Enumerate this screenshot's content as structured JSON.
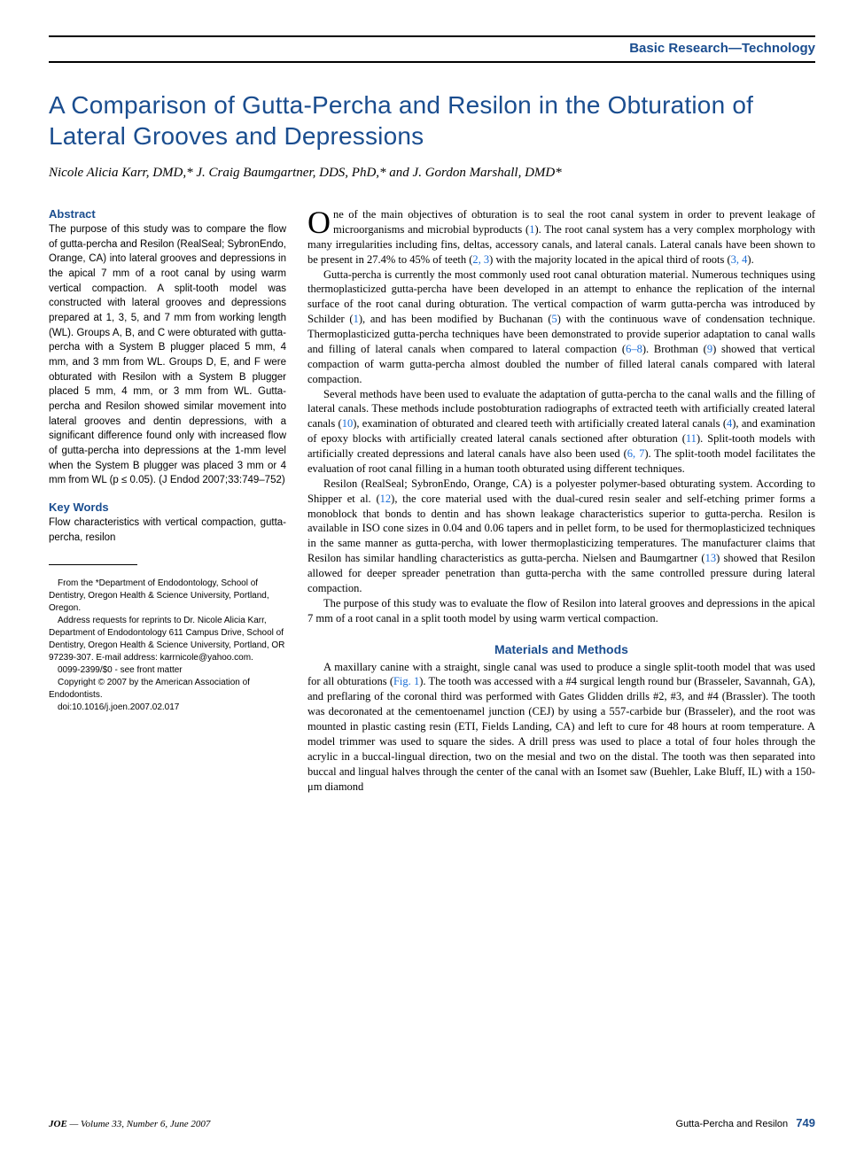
{
  "header": {
    "section": "Basic Research—Technology"
  },
  "title": "A Comparison of Gutta-Percha and Resilon in the Obturation of Lateral Grooves and Depressions",
  "authors": "Nicole Alicia Karr, DMD,* J. Craig Baumgartner, DDS, PhD,* and J. Gordon Marshall, DMD*",
  "abstract": {
    "heading": "Abstract",
    "text": "The purpose of this study was to compare the flow of gutta-percha and Resilon (RealSeal; SybronEndo, Orange, CA) into lateral grooves and depressions in the apical 7 mm of a root canal by using warm vertical compaction. A split-tooth model was constructed with lateral grooves and depressions prepared at 1, 3, 5, and 7 mm from working length (WL). Groups A, B, and C were obturated with gutta-percha with a System B plugger placed 5 mm, 4 mm, and 3 mm from WL. Groups D, E, and F were obturated with Resilon with a System B plugger placed 5 mm, 4 mm, or 3 mm from WL. Gutta-percha and Resilon showed similar movement into lateral grooves and dentin depressions, with a significant difference found only with increased flow of gutta-percha into depressions at the 1-mm level when the System B plugger was placed 3 mm or 4 mm from WL (p ≤ 0.05). (J Endod 2007;33:749–752)"
  },
  "keywords": {
    "heading": "Key Words",
    "text": "Flow characteristics with vertical compaction, gutta-percha, resilon"
  },
  "footnote": {
    "affiliation": "From the *Department of Endodontology, School of Dentistry, Oregon Health & Science University, Portland, Oregon.",
    "correspondence": "Address requests for reprints to Dr. Nicole Alicia Karr, Department of Endodontology 611 Campus Drive, School of Dentistry, Oregon Health & Science University, Portland, OR 97239-307. E-mail address: karrnicole@yahoo.com.",
    "issn": "0099-2399/$0 - see front matter",
    "copyright": "Copyright © 2007 by the American Association of Endodontists.",
    "doi": "doi:10.1016/j.joen.2007.02.017"
  },
  "body": {
    "p1_dropcap": "O",
    "p1": "ne of the main objectives of obturation is to seal the root canal system in order to prevent leakage of microorganisms and microbial byproducts (1). The root canal system has a very complex morphology with many irregularities including fins, deltas, accessory canals, and lateral canals. Lateral canals have been shown to be present in 27.4% to 45% of teeth (2, 3) with the majority located in the apical third of roots (3, 4).",
    "p2": "Gutta-percha is currently the most commonly used root canal obturation material. Numerous techniques using thermoplasticized gutta-percha have been developed in an attempt to enhance the replication of the internal surface of the root canal during obturation. The vertical compaction of warm gutta-percha was introduced by Schilder (1), and has been modified by Buchanan (5) with the continuous wave of condensation technique. Thermoplasticized gutta-percha techniques have been demonstrated to provide superior adaptation to canal walls and filling of lateral canals when compared to lateral compaction (6–8). Brothman (9) showed that vertical compaction of warm gutta-percha almost doubled the number of filled lateral canals compared with lateral compaction.",
    "p3": "Several methods have been used to evaluate the adaptation of gutta-percha to the canal walls and the filling of lateral canals. These methods include postobturation radiographs of extracted teeth with artificially created lateral canals (10), examination of obturated and cleared teeth with artificially created lateral canals (4), and examination of epoxy blocks with artificially created lateral canals sectioned after obturation (11). Split-tooth models with artificially created depressions and lateral canals have also been used (6, 7). The split-tooth model facilitates the evaluation of root canal filling in a human tooth obturated using different techniques.",
    "p4": "Resilon (RealSeal; SybronEndo, Orange, CA) is a polyester polymer-based obturating system. According to Shipper et al. (12), the core material used with the dual-cured resin sealer and self-etching primer forms a monoblock that bonds to dentin and has shown leakage characteristics superior to gutta-percha. Resilon is available in ISO cone sizes in 0.04 and 0.06 tapers and in pellet form, to be used for thermoplasticized techniques in the same manner as gutta-percha, with lower thermoplasticizing temperatures. The manufacturer claims that Resilon has similar handling characteristics as gutta-percha. Nielsen and Baumgartner (13) showed that Resilon allowed for deeper spreader penetration than gutta-percha with the same controlled pressure during lateral compaction.",
    "p5": "The purpose of this study was to evaluate the flow of Resilon into lateral grooves and depressions in the apical 7 mm of a root canal in a split tooth model by using warm vertical compaction.",
    "methods_heading": "Materials and Methods",
    "p6": "A maxillary canine with a straight, single canal was used to produce a single split-tooth model that was used for all obturations (Fig. 1). The tooth was accessed with a #4 surgical length round bur (Brasseler, Savannah, GA), and preflaring of the coronal third was performed with Gates Glidden drills #2, #3, and #4 (Brassler). The tooth was decoronated at the cementoenamel junction (CEJ) by using a 557-carbide bur (Brasseler), and the root was mounted in plastic casting resin (ETI, Fields Landing, CA) and left to cure for 48 hours at room temperature. A model trimmer was used to square the sides. A drill press was used to place a total of four holes through the acrylic in a buccal-lingual direction, two on the mesial and two on the distal. The tooth was then separated into buccal and lingual halves through the center of the canal with an Isomet saw (Buehler, Lake Bluff, IL) with a 150-μm diamond"
  },
  "footer": {
    "journal": "JOE",
    "issue": " — Volume 33, Number 6, June 2007",
    "running_title": "Gutta-Percha and Resilon",
    "page": "749"
  },
  "colors": {
    "brand": "#1a4d8f",
    "link": "#1a6dd6",
    "text": "#000000",
    "background": "#ffffff"
  },
  "typography": {
    "title_fontsize": 28,
    "body_fontsize": 12.5,
    "abstract_fontsize": 11.5,
    "footnote_fontsize": 10
  }
}
